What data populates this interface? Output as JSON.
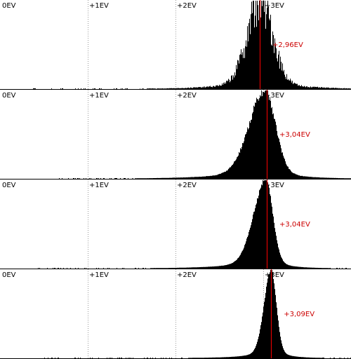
{
  "chart_data": [
    {
      "type": "area",
      "x_ticks": [
        {
          "value": 0,
          "label": "0EV"
        },
        {
          "value": 1,
          "label": "+1EV"
        },
        {
          "value": 2,
          "label": "+2EV"
        },
        {
          "value": 3,
          "label": "+3EV"
        }
      ],
      "xlim": [
        0,
        4
      ],
      "mean": 2.96,
      "mean_label": "+2,96EV",
      "peak": 2.97,
      "spread_left": 0.15,
      "spread_right": 0.14,
      "jitter": 0.3,
      "tail_left": 0.75,
      "tail_right": 0.7
    },
    {
      "type": "area",
      "x_ticks": [
        {
          "value": 0,
          "label": "0EV"
        },
        {
          "value": 1,
          "label": "+1EV"
        },
        {
          "value": 2,
          "label": "+2EV"
        },
        {
          "value": 3,
          "label": "+3EV"
        }
      ],
      "xlim": [
        0,
        4
      ],
      "mean": 3.04,
      "mean_label": "+3,04EV",
      "peak": 3.02,
      "spread_left": 0.18,
      "spread_right": 0.12,
      "jitter": 0.06,
      "tail_left": 0.85,
      "tail_right": 0.6
    },
    {
      "type": "area",
      "x_ticks": [
        {
          "value": 0,
          "label": "0EV"
        },
        {
          "value": 1,
          "label": "+1EV"
        },
        {
          "value": 2,
          "label": "+2EV"
        },
        {
          "value": 3,
          "label": "+3EV"
        }
      ],
      "xlim": [
        0,
        4
      ],
      "mean": 3.04,
      "mean_label": "+3,04EV",
      "peak": 3.03,
      "spread_left": 0.14,
      "spread_right": 0.08,
      "jitter": 0.03,
      "tail_left": 0.95,
      "tail_right": 0.5
    },
    {
      "type": "area",
      "x_ticks": [
        {
          "value": 0,
          "label": "0EV"
        },
        {
          "value": 1,
          "label": "+1EV"
        },
        {
          "value": 2,
          "label": "+2EV"
        },
        {
          "value": 3,
          "label": "+3EV"
        }
      ],
      "xlim": [
        0,
        4
      ],
      "mean": 3.09,
      "mean_label": "+3,09EV",
      "peak": 3.09,
      "spread_left": 0.08,
      "spread_right": 0.06,
      "jitter": 0.02,
      "tail_left": 0.9,
      "tail_right": 0.45
    }
  ],
  "colors": {
    "histogram": "#000000",
    "gridline": "#9a9a9a",
    "mean_line": "#e00000",
    "mean_text": "#cc0000",
    "background": "#ffffff"
  }
}
